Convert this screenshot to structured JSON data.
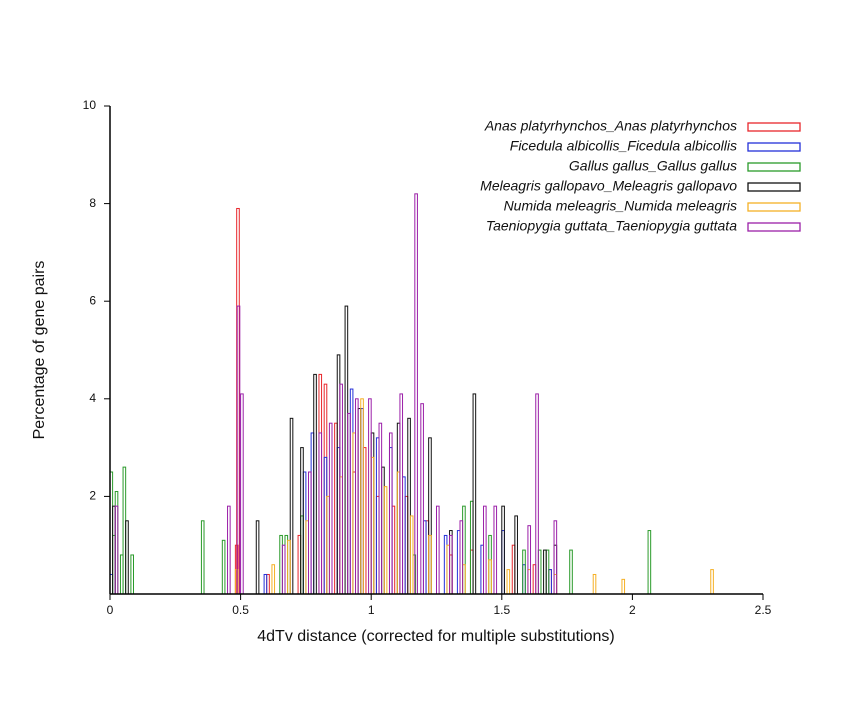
{
  "chart_data": {
    "type": "histogram",
    "xlabel": "4dTv distance (corrected for multiple substitutions)",
    "ylabel": "Percentage of gene pairs",
    "xlim": [
      0,
      2.5
    ],
    "xticks": [
      0,
      0.5,
      1,
      1.5,
      2,
      2.5
    ],
    "ylim": [
      0,
      10
    ],
    "yticks": [
      2,
      4,
      6,
      8,
      10
    ],
    "legend": "upper right",
    "series": [
      {
        "name": "Anas platyrhynchos_Anas platyrhynchos",
        "color": "#e8262b",
        "x": [
          0.48,
          0.485,
          0.6,
          0.72,
          0.8,
          0.82,
          0.86,
          0.93,
          0.97,
          1.02,
          1.08,
          1.13,
          1.21,
          1.3,
          1.38,
          1.54,
          1.62,
          1.68
        ],
        "values": [
          1.0,
          7.9,
          0.4,
          1.2,
          4.5,
          4.3,
          3.5,
          2.5,
          3.0,
          2.0,
          1.8,
          2.0,
          1.5,
          0.8,
          0.9,
          1.0,
          0.6,
          0.5
        ]
      },
      {
        "name": "Ficedula albicollis_Ficedula albicollis",
        "color": "#2430d8",
        "x": [
          0.0,
          0.59,
          0.74,
          0.77,
          0.82,
          0.87,
          0.92,
          0.96,
          1.02,
          1.07,
          1.12,
          1.2,
          1.28,
          1.33,
          1.42,
          1.5,
          1.58,
          1.68
        ],
        "values": [
          0.4,
          0.4,
          2.5,
          3.3,
          2.8,
          3.0,
          4.2,
          3.8,
          3.2,
          3.0,
          2.4,
          1.5,
          1.2,
          1.3,
          1.0,
          1.3,
          0.6,
          0.5
        ]
      },
      {
        "name": "Gallus gallus_Gallus gallus",
        "color": "#2a9a2a",
        "x": [
          0.0,
          0.01,
          0.02,
          0.04,
          0.05,
          0.08,
          0.35,
          0.43,
          0.65,
          0.67,
          0.73,
          1.16,
          1.35,
          1.38,
          1.45,
          1.58,
          1.64,
          1.67,
          1.76,
          2.06
        ],
        "values": [
          2.5,
          1.2,
          2.1,
          0.8,
          2.6,
          0.8,
          1.5,
          1.1,
          1.2,
          1.2,
          1.6,
          0.8,
          1.8,
          1.9,
          1.2,
          0.9,
          0.9,
          0.9,
          0.9,
          1.3
        ]
      },
      {
        "name": "Meleagris gallopavo_Meleagris gallopavo",
        "color": "#111111",
        "x": [
          0.01,
          0.06,
          0.56,
          0.69,
          0.73,
          0.78,
          0.87,
          0.9,
          0.95,
          1.0,
          1.04,
          1.1,
          1.14,
          1.22,
          1.3,
          1.39,
          1.5,
          1.55,
          1.66,
          1.7
        ],
        "values": [
          1.8,
          1.5,
          1.5,
          3.6,
          3.0,
          4.5,
          4.9,
          5.9,
          3.8,
          3.3,
          2.6,
          3.5,
          3.6,
          3.2,
          1.3,
          4.1,
          1.8,
          1.6,
          0.9,
          1.0
        ]
      },
      {
        "name": "Numida meleagris_Numida meleagris",
        "color": "#f5b025",
        "x": [
          0.48,
          0.62,
          0.68,
          0.75,
          0.83,
          0.88,
          0.93,
          0.96,
          1.0,
          1.05,
          1.1,
          1.15,
          1.22,
          1.29,
          1.35,
          1.45,
          1.52,
          1.6,
          1.7,
          1.85,
          1.96,
          2.3
        ],
        "values": [
          0.5,
          0.6,
          1.1,
          1.5,
          2.0,
          2.4,
          3.3,
          4.0,
          2.8,
          2.2,
          2.5,
          1.6,
          1.2,
          1.0,
          0.6,
          0.7,
          0.5,
          0.5,
          0.4,
          0.4,
          0.3,
          0.5
        ]
      },
      {
        "name": "Taeniopygia guttata_Taeniopygia guttata",
        "color": "#9b1fa8",
        "x": [
          0.02,
          0.45,
          0.487,
          0.5,
          0.66,
          0.76,
          0.8,
          0.84,
          0.88,
          0.91,
          0.94,
          0.99,
          1.03,
          1.07,
          1.11,
          1.167,
          1.19,
          1.25,
          1.3,
          1.34,
          1.43,
          1.47,
          1.6,
          1.63,
          1.7
        ],
        "values": [
          1.8,
          1.8,
          5.9,
          4.1,
          1.0,
          2.5,
          3.3,
          3.5,
          4.3,
          3.7,
          4.0,
          4.0,
          3.5,
          3.3,
          4.1,
          8.2,
          3.9,
          1.8,
          1.2,
          1.5,
          1.8,
          1.8,
          1.4,
          4.1,
          1.5
        ]
      }
    ]
  }
}
